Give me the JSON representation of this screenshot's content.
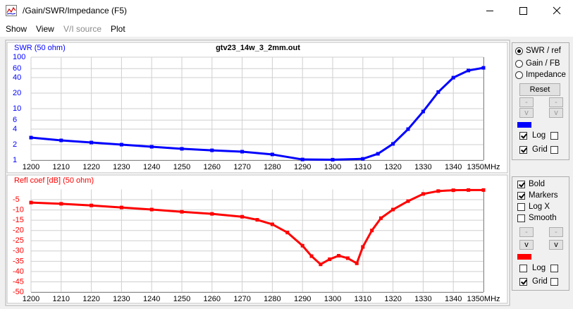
{
  "window": {
    "title": "/Gain/SWR/Impedance (F5)"
  },
  "menu": [
    "Show",
    "View",
    "V/I source",
    "Plot"
  ],
  "chart_data": [
    {
      "type": "line",
      "title": "gtv23_14w_3_2mm.out",
      "y_label": "SWR (50 ohm)",
      "x": [
        1200,
        1210,
        1220,
        1230,
        1240,
        1250,
        1260,
        1270,
        1280,
        1290,
        1300,
        1310,
        1315,
        1320,
        1325,
        1330,
        1335,
        1340,
        1345,
        1350
      ],
      "series": [
        {
          "color": "#0000ff",
          "values": [
            2.74,
            2.42,
            2.2,
            2.0,
            1.82,
            1.66,
            1.55,
            1.46,
            1.29,
            1.03,
            1.02,
            1.06,
            1.33,
            2.07,
            4.0,
            8.8,
            21,
            40,
            55,
            62
          ]
        }
      ],
      "xlim": [
        1200,
        1350
      ],
      "xticks": [
        1200,
        1210,
        1220,
        1230,
        1240,
        1250,
        1260,
        1270,
        1280,
        1290,
        1300,
        1310,
        1320,
        1330,
        1340,
        {
          "value": 1350,
          "label": "1350MHz"
        }
      ],
      "ylim": [
        1,
        100
      ],
      "yticks": [
        1,
        2,
        4,
        6,
        10,
        20,
        40,
        60,
        100
      ]
    },
    {
      "type": "line",
      "y_label": "Refl coef [dB] (50 ohm)",
      "x": [
        1200,
        1210,
        1220,
        1230,
        1240,
        1250,
        1260,
        1270,
        1275,
        1280,
        1285,
        1290,
        1293,
        1296,
        1299,
        1302,
        1305,
        1308,
        1310,
        1313,
        1316,
        1320,
        1325,
        1330,
        1335,
        1340,
        1345,
        1350
      ],
      "series": [
        {
          "color": "#ff0000",
          "values": [
            -6.4,
            -7,
            -7.8,
            -8.8,
            -9.8,
            -10.9,
            -11.9,
            -13.3,
            -14.8,
            -17,
            -21,
            -27.4,
            -32.5,
            -36.5,
            -34,
            -32.3,
            -33.5,
            -36,
            -28,
            -20,
            -14,
            -9.8,
            -5.7,
            -2.2,
            -0.8,
            -0.4,
            -0.3,
            -0.3
          ]
        }
      ],
      "xlim": [
        1200,
        1350
      ],
      "xticks": [
        1200,
        1210,
        1220,
        1230,
        1240,
        1250,
        1260,
        1270,
        1280,
        1290,
        1300,
        1310,
        1320,
        1330,
        1340,
        {
          "value": 1350,
          "label": "1350MHz"
        }
      ],
      "ylim": [
        -50,
        0
      ],
      "yticks": [
        -5,
        -10,
        -15,
        -20,
        -25,
        -30,
        -35,
        -40,
        -45,
        -50
      ]
    }
  ],
  "panel": {
    "radios": [
      {
        "label": "SWR / ref",
        "checked": true
      },
      {
        "label": "Gain / FB",
        "checked": false
      },
      {
        "label": "Impedance",
        "checked": false
      }
    ],
    "reset": "Reset",
    "top": {
      "buttons": [
        "-",
        "-",
        "v",
        "v"
      ],
      "checks": [
        {
          "label": "Log",
          "checked": true
        },
        {
          "label": "Grid",
          "checked": true
        }
      ]
    },
    "options": [
      {
        "label": "Bold",
        "checked": true
      },
      {
        "label": "Markers",
        "checked": true
      },
      {
        "label": "Log X",
        "checked": false
      },
      {
        "label": "Smooth",
        "checked": false
      }
    ],
    "bottom": {
      "buttons": [
        "-",
        "-",
        "v",
        "v"
      ],
      "checks": [
        {
          "label": "Log",
          "checked": false
        },
        {
          "label": "Grid",
          "checked": true
        }
      ]
    }
  }
}
